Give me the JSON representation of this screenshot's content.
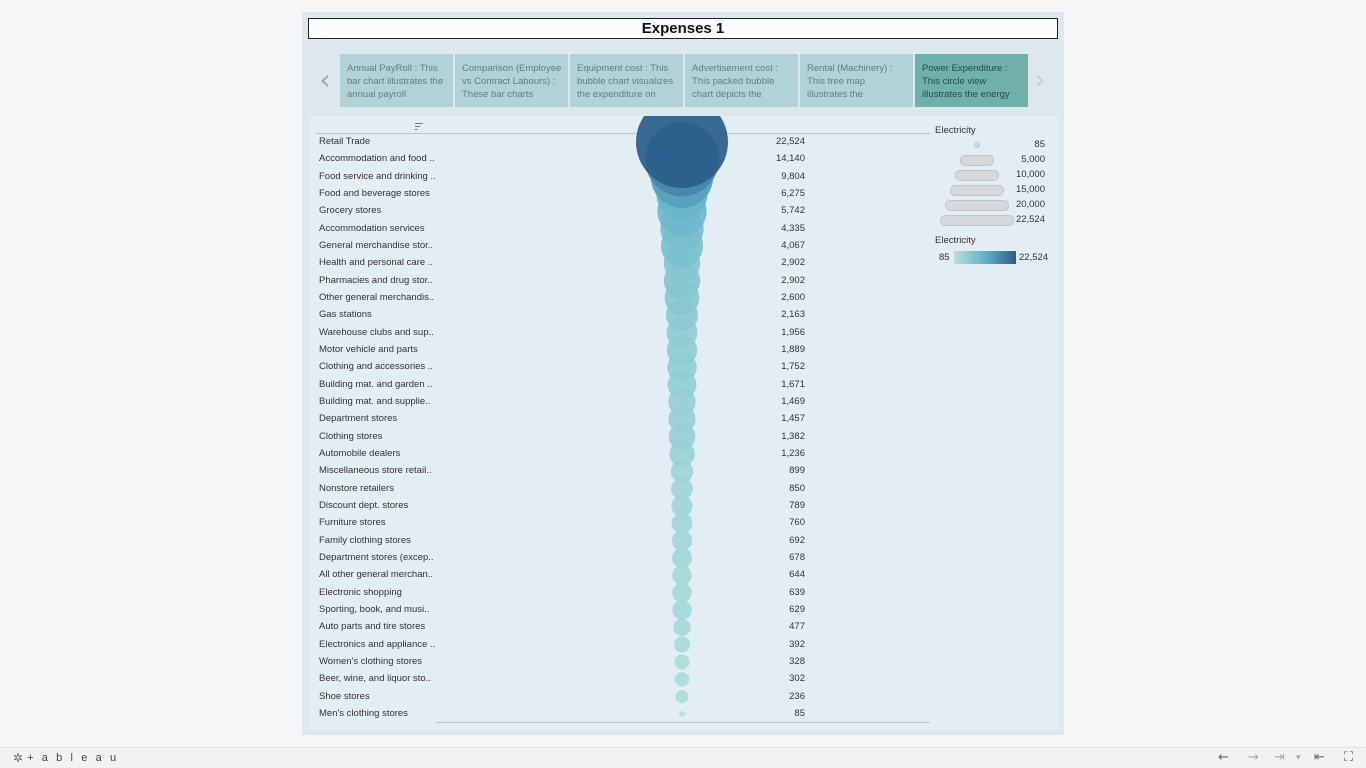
{
  "dashboard": {
    "title": "Expenses 1"
  },
  "story": {
    "points": [
      {
        "text": "Annual PayRoll : This bar chart illustrates the annual payroll",
        "active": false
      },
      {
        "text": "Comparison (Employee vs Contract Labours) : These bar charts",
        "active": false
      },
      {
        "text": "Equipment cost : This bubble chart visualizes the expenditure on",
        "active": false
      },
      {
        "text": "Advertisement cost : This packed bubble chart depicts the",
        "active": false
      },
      {
        "text": "Rental (Machinery) : This tree map illustrates the",
        "active": false
      },
      {
        "text": "Power Expenditure : This circle view illustrates the energy",
        "active": true
      }
    ],
    "prev_icon": "chevron-left-icon",
    "next_icon": "chevron-right-icon"
  },
  "legends": {
    "size_title": "Electricity",
    "size_items": [
      "85",
      "5,000",
      "10,000",
      "15,000",
      "20,000",
      "22,524"
    ],
    "color_title": "Electricity",
    "color_min": "85",
    "color_max": "22,524",
    "color_low": "#b5e1dc",
    "color_mid": "#62b2c8",
    "color_high": "#2a5d8a"
  },
  "chart_data": {
    "type": "scatter",
    "measure": "Electricity",
    "categories": [
      "Retail Trade",
      "Accommodation and food ..",
      "Food service and drinking ..",
      "Food and beverage stores",
      "Grocery stores",
      "Accommodation services",
      "General merchandise stor..",
      "Health and personal care ..",
      "Pharmacies and drug stor..",
      "Other general merchandis..",
      "Gas stations",
      "Warehouse clubs and sup..",
      "Motor vehicle and parts",
      "Clothing and accessories ..",
      "Building mat. and garden ..",
      "Building mat. and supplie..",
      "Department stores",
      "Clothing stores",
      "Automobile dealers",
      "Miscellaneous store retail..",
      "Nonstore retailers",
      "Discount dept. stores",
      "Furniture stores",
      "Family clothing stores",
      "Department stores (excep..",
      "All other general merchan..",
      "Electronic shopping",
      "Sporting, book, and musi..",
      "Auto parts and tire stores",
      "Electronics and appliance ..",
      "Women's clothing stores",
      "Beer, wine, and liquor sto..",
      "Shoe stores",
      "Men's clothing stores"
    ],
    "values": [
      22524,
      14140,
      9804,
      6275,
      5742,
      4335,
      4067,
      2902,
      2902,
      2600,
      2163,
      1956,
      1889,
      1752,
      1671,
      1469,
      1457,
      1382,
      1236,
      899,
      850,
      789,
      760,
      692,
      678,
      644,
      639,
      629,
      477,
      392,
      328,
      302,
      236,
      85
    ],
    "value_labels": [
      "22,524",
      "14,140",
      "9,804",
      "6,275",
      "5,742",
      "4,335",
      "4,067",
      "2,902",
      "2,902",
      "2,600",
      "2,163",
      "1,956",
      "1,889",
      "1,752",
      "1,671",
      "1,469",
      "1,457",
      "1,382",
      "1,236",
      "899",
      "850",
      "789",
      "760",
      "692",
      "678",
      "644",
      "639",
      "629",
      "477",
      "392",
      "328",
      "302",
      "236",
      "85"
    ],
    "xlabel": "",
    "ylabel": "",
    "sort": "descending"
  },
  "toolbar": {
    "logo_text": "+ a b l e a u",
    "items": [
      "undo-icon",
      "redo-icon",
      "revert-icon",
      "dropdown-icon",
      "first-icon",
      "fullscreen-icon"
    ]
  }
}
